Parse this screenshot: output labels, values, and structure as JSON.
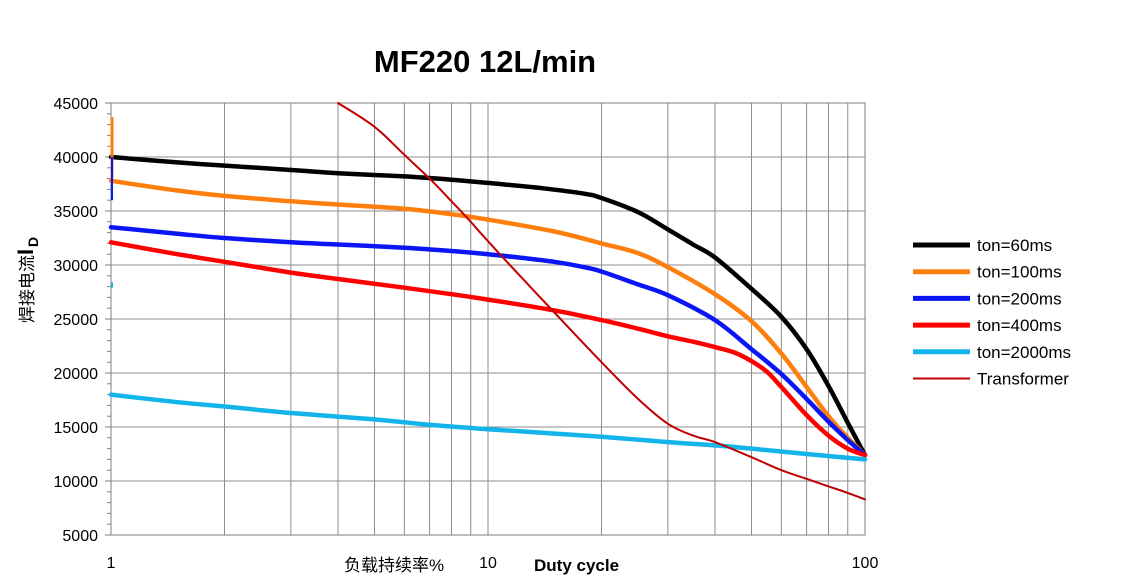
{
  "chart_data": {
    "type": "line",
    "title": "MF220 12L/min",
    "xlabel_cn": "负载持续率%",
    "xlabel_en": "Duty cycle",
    "ylabel_cn": "焊接电流",
    "ylabel_main": "I",
    "ylabel_sub": "D",
    "x_scale": "log",
    "xlim": [
      1,
      100
    ],
    "ylim": [
      5000,
      45000
    ],
    "x_ticks": [
      "1",
      "10",
      "100"
    ],
    "y_ticks": [
      "45000",
      "40000",
      "35000",
      "30000",
      "25000",
      "20000",
      "15000",
      "10000",
      "5000"
    ],
    "grid": true,
    "legend_position": "right",
    "series": [
      {
        "name": "ton=60ms",
        "color": "#000000",
        "x": [
          1,
          1.5,
          2,
          3,
          4,
          6,
          8,
          10,
          14,
          18,
          20,
          25,
          30,
          35,
          40,
          50,
          60,
          70,
          80,
          90,
          100
        ],
        "y": [
          40000,
          39500,
          39200,
          38800,
          38500,
          38200,
          37900,
          37600,
          37100,
          36600,
          36200,
          34900,
          33300,
          31900,
          30700,
          27800,
          25200,
          22200,
          18800,
          15400,
          12400
        ]
      },
      {
        "name": "ton=100ms",
        "color": "#ff7f0e",
        "x": [
          1,
          1.5,
          2,
          3,
          4,
          6,
          8,
          10,
          15,
          20,
          25,
          30,
          40,
          50,
          60,
          70,
          80,
          90,
          100
        ],
        "y": [
          37800,
          36900,
          36400,
          35900,
          35600,
          35200,
          34700,
          34200,
          33100,
          32000,
          31100,
          29800,
          27300,
          24800,
          21800,
          18700,
          16000,
          14000,
          12400
        ]
      },
      {
        "name": "ton=200ms",
        "color": "#0a16f5",
        "x": [
          1,
          1.5,
          2,
          3,
          4,
          6,
          8,
          10,
          12,
          15,
          18,
          20,
          25,
          30,
          40,
          50,
          60,
          70,
          80,
          90,
          100
        ],
        "y": [
          33500,
          32900,
          32500,
          32100,
          31900,
          31600,
          31300,
          31000,
          30700,
          30300,
          29800,
          29400,
          28200,
          27200,
          24900,
          22200,
          19900,
          17600,
          15500,
          13800,
          12400
        ]
      },
      {
        "name": "ton=400ms",
        "color": "#ff0000",
        "x": [
          1,
          1.5,
          2,
          3,
          4,
          6,
          8,
          10,
          15,
          20,
          25,
          30,
          35,
          40,
          45,
          50,
          55,
          60,
          70,
          80,
          90,
          100
        ],
        "y": [
          32100,
          31000,
          30300,
          29300,
          28700,
          27900,
          27300,
          26800,
          25800,
          24900,
          24100,
          23400,
          22900,
          22400,
          21900,
          21100,
          20100,
          18700,
          16100,
          14200,
          13000,
          12400
        ]
      },
      {
        "name": "ton=2000ms",
        "color": "#12b4ea",
        "x": [
          1,
          1.5,
          2,
          3,
          5,
          7,
          10,
          20,
          30,
          40,
          50,
          70,
          100
        ],
        "y": [
          18000,
          17300,
          16900,
          16300,
          15700,
          15200,
          14800,
          14100,
          13600,
          13300,
          13000,
          12500,
          12000
        ]
      },
      {
        "name": "Transformer",
        "color": "#c00000",
        "x": [
          4,
          5,
          6,
          7,
          8,
          9,
          10,
          12,
          15,
          20,
          25,
          30,
          35,
          40,
          50,
          60,
          70,
          80,
          90,
          100
        ],
        "y": [
          45000,
          42800,
          40200,
          38000,
          35900,
          34000,
          32200,
          29200,
          25600,
          21000,
          17600,
          15300,
          14200,
          13600,
          12200,
          11000,
          10200,
          9500,
          8900,
          8300
        ]
      }
    ]
  }
}
